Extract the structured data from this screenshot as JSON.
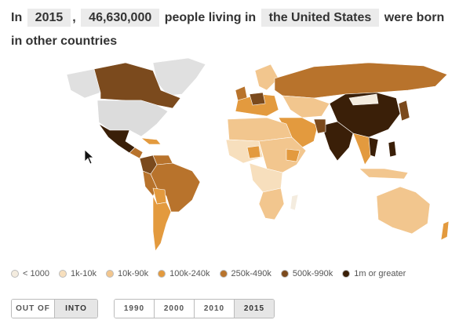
{
  "headline": {
    "prefix": "In",
    "year": "2015",
    "comma": ",",
    "count": "46,630,000",
    "middle": "people living in",
    "country": "the United States",
    "suffix": "were born in other countries"
  },
  "legend": [
    {
      "label": "< 1000",
      "color": "#f4ecdf"
    },
    {
      "label": "1k-10k",
      "color": "#f7dfbd"
    },
    {
      "label": "10k-90k",
      "color": "#f2c68e"
    },
    {
      "label": "100k-240k",
      "color": "#e39a3e"
    },
    {
      "label": "250k-490k",
      "color": "#b8732c"
    },
    {
      "label": "500k-990k",
      "color": "#7b4a1d"
    },
    {
      "label": "1m or greater",
      "color": "#3a1f08"
    }
  ],
  "direction": {
    "options": [
      "OUT OF",
      "INTO"
    ],
    "selected": "INTO"
  },
  "years": {
    "options": [
      "1990",
      "2000",
      "2010",
      "2015"
    ],
    "selected": "2015"
  }
}
